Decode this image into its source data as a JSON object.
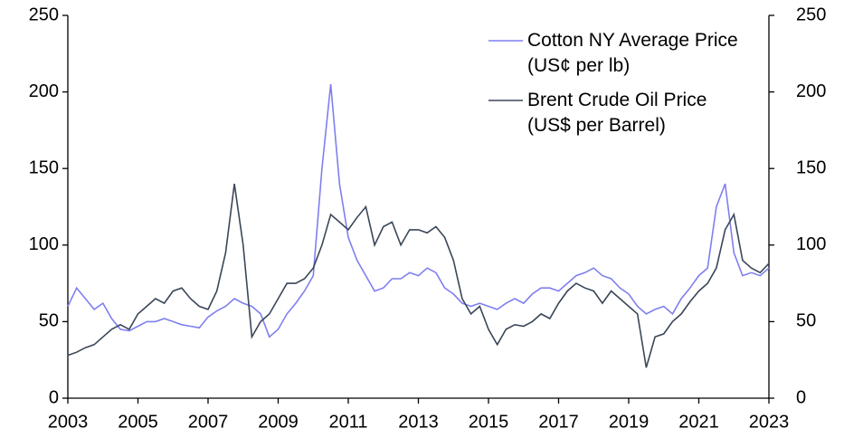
{
  "chart_data": {
    "type": "line",
    "x": [
      2003,
      2003.25,
      2003.5,
      2003.75,
      2004,
      2004.25,
      2004.5,
      2004.75,
      2005,
      2005.25,
      2005.5,
      2005.75,
      2006,
      2006.25,
      2006.5,
      2006.75,
      2007,
      2007.25,
      2007.5,
      2007.75,
      2008,
      2008.25,
      2008.5,
      2008.75,
      2009,
      2009.25,
      2009.5,
      2009.75,
      2010,
      2010.25,
      2010.5,
      2010.75,
      2011,
      2011.25,
      2011.5,
      2011.75,
      2012,
      2012.25,
      2012.5,
      2012.75,
      2013,
      2013.25,
      2013.5,
      2013.75,
      2014,
      2014.25,
      2014.5,
      2014.75,
      2015,
      2015.25,
      2015.5,
      2015.75,
      2016,
      2016.25,
      2016.5,
      2016.75,
      2017,
      2017.25,
      2017.5,
      2017.75,
      2018,
      2018.25,
      2018.5,
      2018.75,
      2019,
      2019.25,
      2019.5,
      2019.75,
      2020,
      2020.25,
      2020.5,
      2020.75,
      2021,
      2021.25,
      2021.5,
      2021.75,
      2022,
      2022.25,
      2022.5,
      2022.75,
      2023
    ],
    "series": [
      {
        "name": "Cotton NY Average Price (US¢ per lb)",
        "color": "#7f7ff0",
        "axis": "y",
        "values": [
          60,
          72,
          65,
          58,
          62,
          52,
          45,
          44,
          47,
          50,
          50,
          52,
          50,
          48,
          47,
          46,
          53,
          57,
          60,
          65,
          62,
          60,
          55,
          40,
          45,
          55,
          62,
          70,
          80,
          150,
          205,
          140,
          105,
          90,
          80,
          70,
          72,
          78,
          78,
          82,
          80,
          85,
          82,
          72,
          68,
          62,
          60,
          62,
          60,
          58,
          62,
          65,
          62,
          68,
          72,
          72,
          70,
          75,
          80,
          82,
          85,
          80,
          78,
          72,
          68,
          60,
          55,
          58,
          60,
          55,
          65,
          72,
          80,
          85,
          125,
          140,
          95,
          80,
          82,
          80,
          85
        ]
      },
      {
        "name": "Brent Crude Oil Price (US$ per Barrel)",
        "color": "#3a4758",
        "axis": "y2",
        "values": [
          28,
          30,
          33,
          35,
          40,
          45,
          48,
          45,
          55,
          60,
          65,
          62,
          70,
          72,
          65,
          60,
          58,
          70,
          95,
          140,
          100,
          40,
          50,
          55,
          65,
          75,
          75,
          78,
          85,
          100,
          120,
          115,
          110,
          118,
          125,
          100,
          112,
          115,
          100,
          110,
          110,
          108,
          112,
          105,
          90,
          65,
          55,
          60,
          45,
          35,
          45,
          48,
          47,
          50,
          55,
          52,
          62,
          70,
          75,
          72,
          70,
          62,
          70,
          65,
          60,
          55,
          20,
          40,
          42,
          50,
          55,
          63,
          70,
          75,
          85,
          110,
          120,
          90,
          85,
          82,
          88
        ]
      }
    ],
    "xlim": [
      2003,
      2023
    ],
    "xticks": [
      2003,
      2005,
      2007,
      2009,
      2011,
      2013,
      2015,
      2017,
      2019,
      2021,
      2023
    ],
    "ylim": [
      0,
      250
    ],
    "yticks": [
      0,
      50,
      100,
      150,
      200,
      250
    ],
    "y2lim": [
      0,
      250
    ],
    "y2ticks": [
      0,
      50,
      100,
      150,
      200,
      250
    ],
    "legend": "upper right",
    "grid": false
  }
}
